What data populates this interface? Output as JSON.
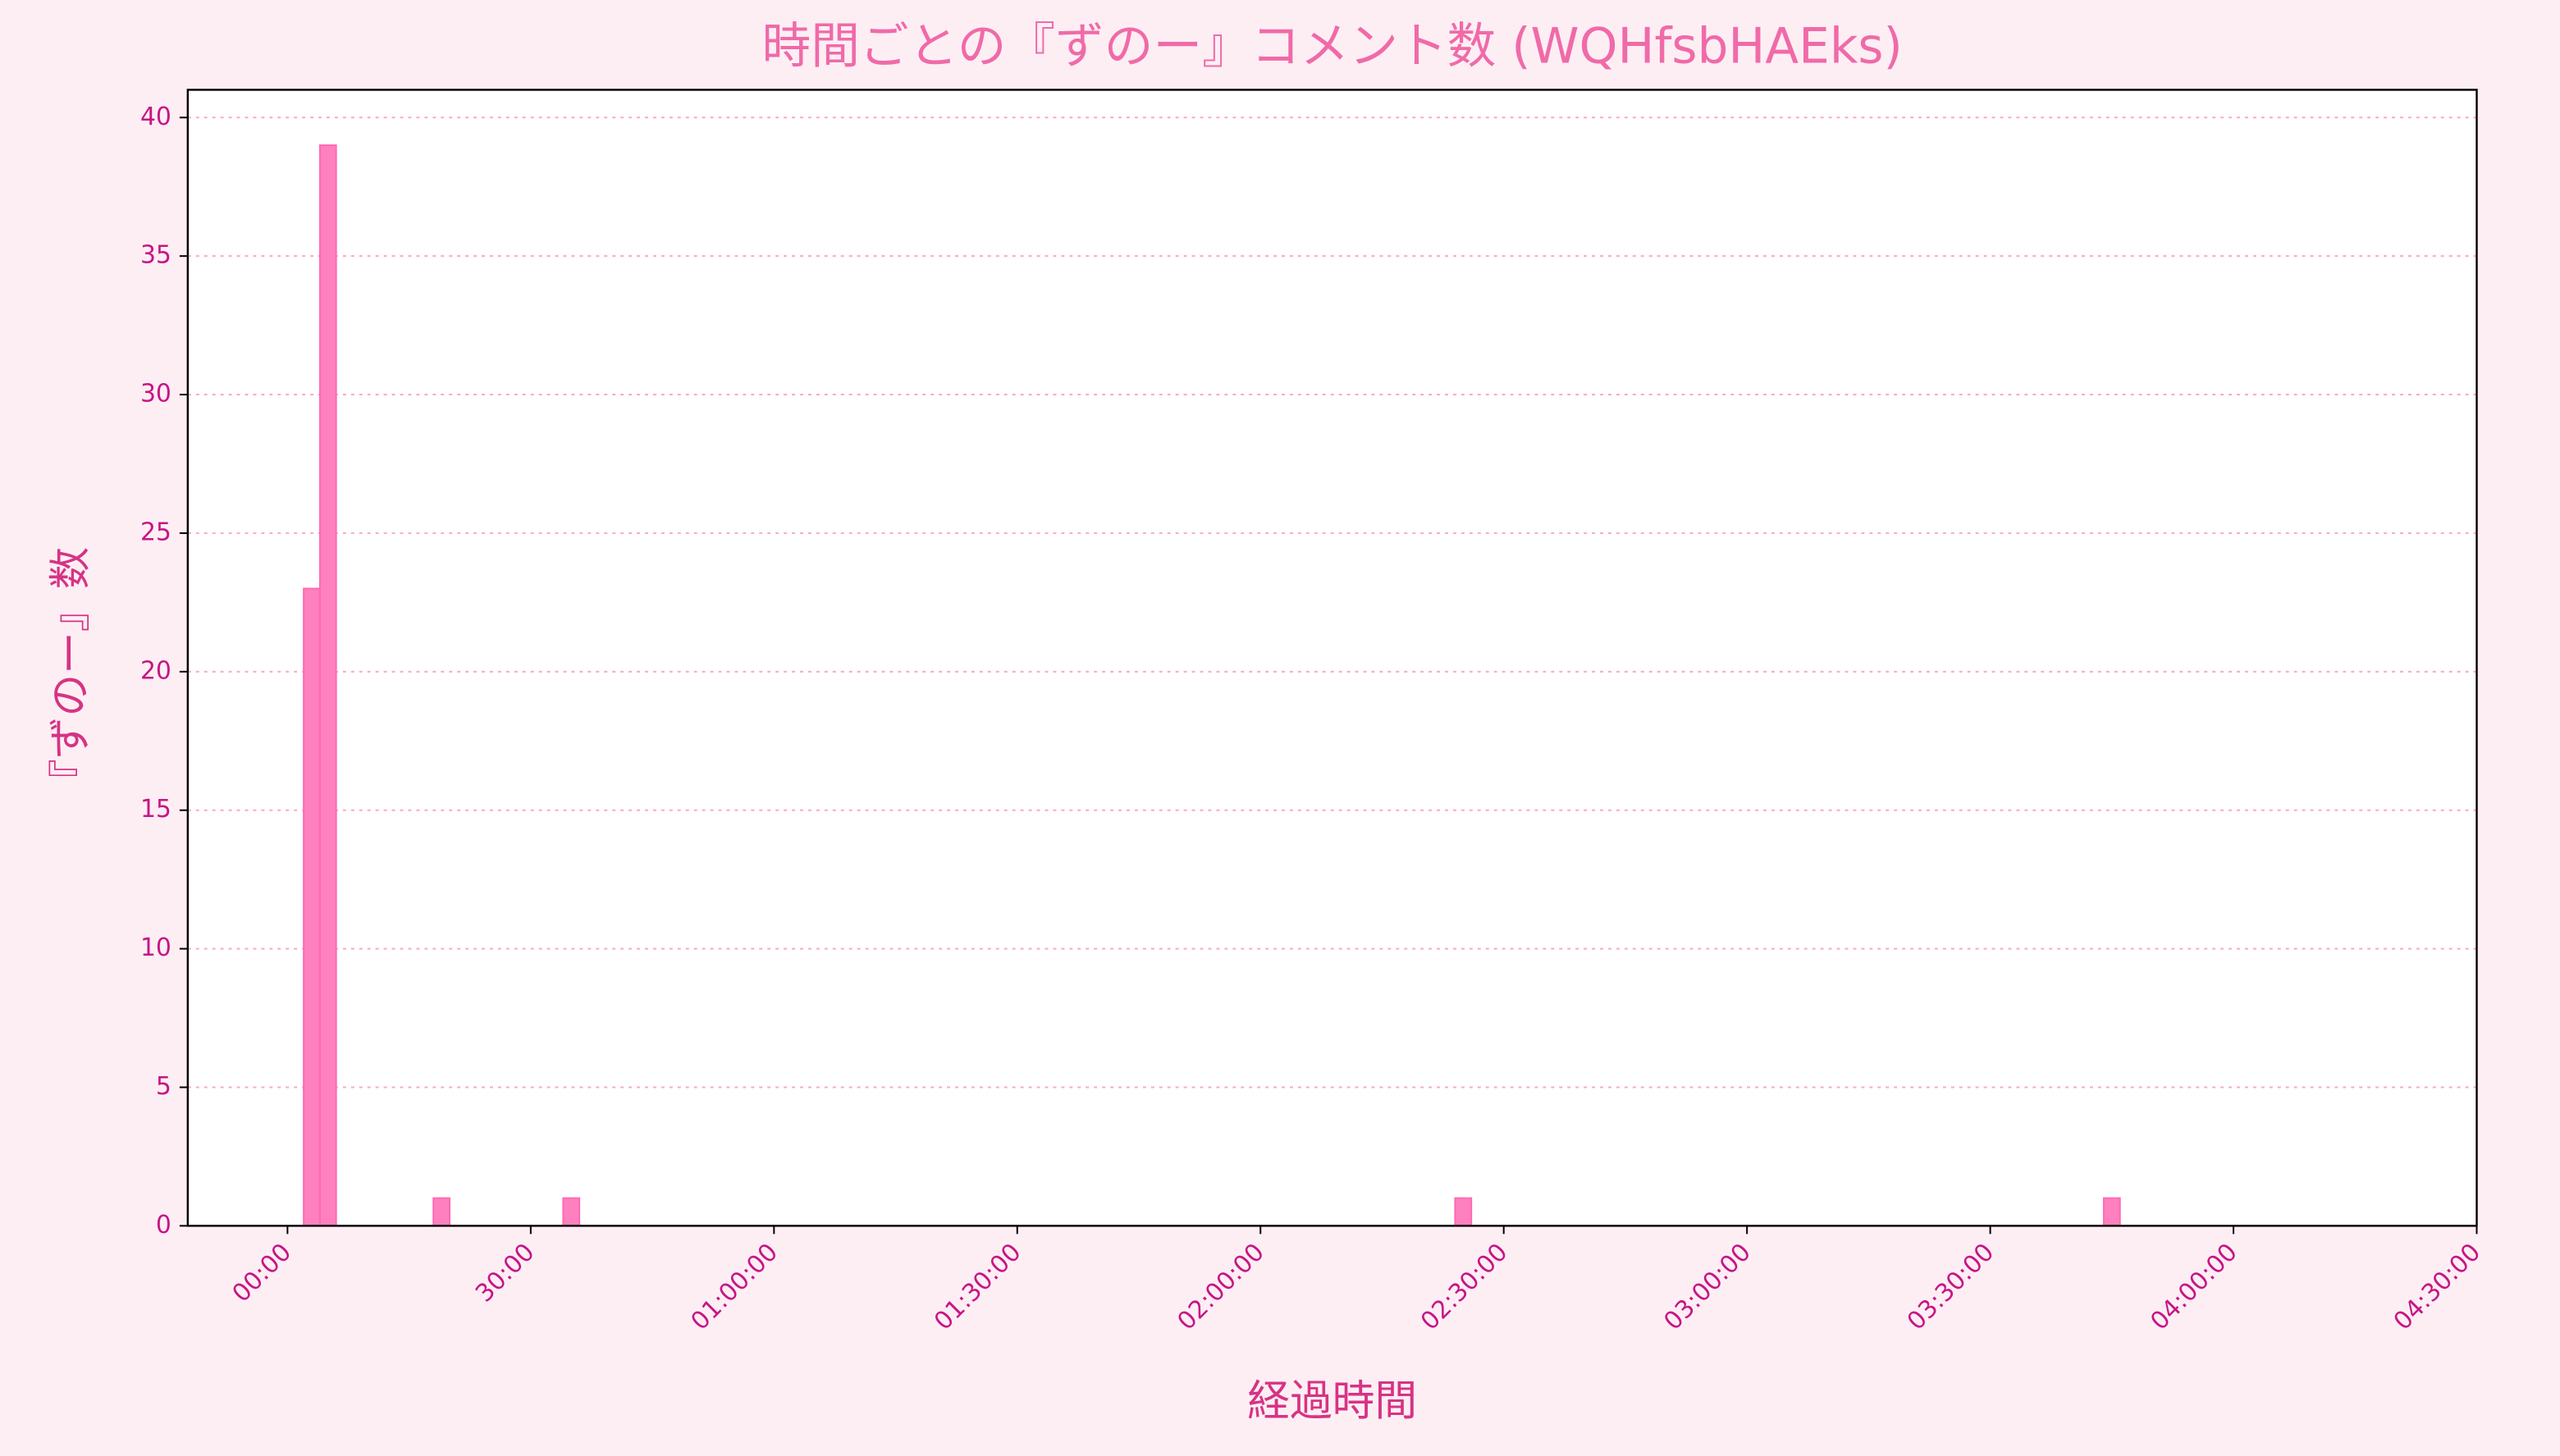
{
  "chart_data": {
    "type": "histogram",
    "title": "時間ごとの『ずのー』コメント数 (WQHfsbHAEks)",
    "x_label": "経過時間",
    "y_label": "『ずのー』数",
    "bins": [
      0,
      2,
      4,
      6,
      8,
      10,
      12,
      14,
      16,
      18,
      20,
      22,
      24,
      26,
      28,
      30,
      32,
      34,
      36,
      38,
      40,
      42,
      44,
      46,
      48,
      50,
      52,
      54,
      56,
      58,
      60,
      62,
      64,
      66,
      68,
      70,
      72,
      74,
      76,
      78,
      80,
      82,
      84,
      86,
      88,
      90,
      92,
      94,
      96,
      98,
      100,
      102,
      104,
      106,
      108,
      110,
      112,
      114,
      116,
      118,
      120,
      122,
      124,
      126,
      128,
      130,
      132,
      134,
      136,
      138,
      140,
      142,
      144,
      146,
      148,
      150,
      152,
      154,
      156,
      158,
      160,
      162,
      164,
      166,
      168,
      170,
      172,
      174,
      176,
      178,
      180,
      182,
      184,
      186,
      188,
      190,
      192,
      194,
      196,
      198,
      200,
      202,
      204,
      206,
      208,
      210,
      212,
      214,
      216,
      218,
      220,
      222,
      224,
      226,
      228,
      230,
      232,
      234,
      236,
      238,
      240,
      242,
      244,
      246,
      248
    ],
    "values": [
      0,
      23,
      39,
      0,
      0,
      0,
      0,
      0,
      0,
      1,
      0,
      0,
      0,
      0,
      0,
      0,
      0,
      1,
      0,
      0,
      0,
      0,
      0,
      0,
      0,
      0,
      0,
      0,
      0,
      0,
      0,
      0,
      0,
      0,
      0,
      0,
      0,
      0,
      0,
      0,
      0,
      0,
      0,
      0,
      0,
      0,
      0,
      0,
      0,
      0,
      0,
      0,
      0,
      0,
      0,
      0,
      0,
      0,
      0,
      0,
      0,
      0,
      0,
      0,
      0,
      0,
      0,
      0,
      0,
      0,
      0,
      0,
      1,
      0,
      0,
      0,
      0,
      0,
      0,
      0,
      0,
      0,
      0,
      0,
      0,
      0,
      0,
      0,
      0,
      0,
      0,
      0,
      0,
      0,
      0,
      0,
      0,
      0,
      0,
      0,
      0,
      0,
      0,
      0,
      0,
      0,
      0,
      0,
      0,
      0,
      0,
      0,
      1,
      0,
      0,
      0,
      0,
      0,
      0,
      0,
      0,
      0,
      0,
      0
    ],
    "color": "#ff80bf",
    "xlim": [
      -12.3,
      270
    ],
    "xticks": [
      {
        "value": 0,
        "label": "00:00"
      },
      {
        "value": 30,
        "label": "30:00"
      },
      {
        "value": 60,
        "label": "01:00:00"
      },
      {
        "value": 90,
        "label": "01:30:00"
      },
      {
        "value": 120,
        "label": "02:00:00"
      },
      {
        "value": 150,
        "label": "02:30:00"
      },
      {
        "value": 180,
        "label": "03:00:00"
      },
      {
        "value": 210,
        "label": "03:30:00"
      },
      {
        "value": 240,
        "label": "04:00:00"
      },
      {
        "value": 270,
        "label": "04:30:00"
      }
    ],
    "ylim": [
      0,
      41
    ],
    "yticks": [
      0,
      5,
      10,
      15,
      20,
      25,
      30,
      35,
      40
    ],
    "grid": true
  }
}
